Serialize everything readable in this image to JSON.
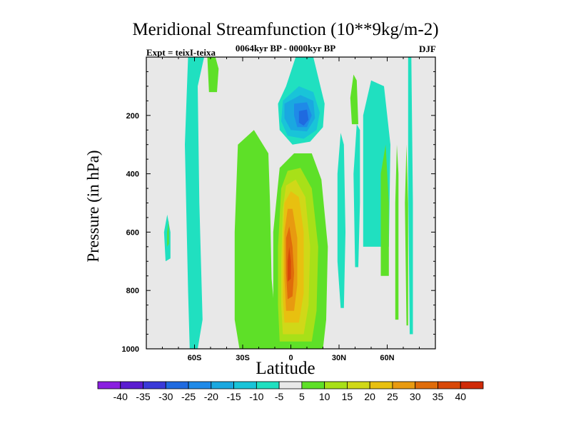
{
  "chart_data": {
    "type": "contour",
    "title": "Meridional Streamfunction (10**9kg/m-2)",
    "subtitle": "0064kyr BP - 0000kyr BP",
    "experiment": "Expt = teixI-teixa",
    "season": "DJF",
    "xlabel": "Latitude",
    "ylabel": "Pressure (in hPa)",
    "xlim": [
      -90,
      90
    ],
    "ylim": [
      1000,
      0
    ],
    "xticks": [
      {
        "value": -60,
        "label": "60S"
      },
      {
        "value": -30,
        "label": "30S"
      },
      {
        "value": 0,
        "label": "0"
      },
      {
        "value": 30,
        "label": "30N"
      },
      {
        "value": 60,
        "label": "60N"
      }
    ],
    "yticks": [
      {
        "value": 200,
        "label": "200"
      },
      {
        "value": 400,
        "label": "400"
      },
      {
        "value": 600,
        "label": "600"
      },
      {
        "value": 800,
        "label": "800"
      },
      {
        "value": 1000,
        "label": "1000"
      }
    ],
    "background_color": "#e8e8e8",
    "colorbar": {
      "levels": [
        "-40",
        "-35",
        "-30",
        "-25",
        "-20",
        "-15",
        "-10",
        "-5",
        "5",
        "10",
        "15",
        "20",
        "25",
        "30",
        "35",
        "40"
      ],
      "colors": [
        "#8a1fe0",
        "#5a1cd0",
        "#3a3ad8",
        "#1f6ae0",
        "#1f8ae8",
        "#1aa8e0",
        "#19c4d8",
        "#20e0c0",
        "#e8e8e8",
        "#5ee028",
        "#a8e018",
        "#d0d818",
        "#e8c010",
        "#e89a10",
        "#e06c0a",
        "#d84808",
        "#d02a08"
      ]
    },
    "fields": [
      {
        "name": "equatorial-positive-cell",
        "level": "5",
        "polygon": [
          [
            -10,
            1000
          ],
          [
            20,
            1000
          ],
          [
            22,
            900
          ],
          [
            23,
            650
          ],
          [
            19,
            420
          ],
          [
            13,
            330
          ],
          [
            2,
            330
          ],
          [
            -7,
            380
          ],
          [
            -11,
            600
          ],
          [
            -11,
            850
          ]
        ]
      },
      {
        "name": "equatorial-positive-cell",
        "level": "10",
        "polygon": [
          [
            -7,
            975
          ],
          [
            13,
            975
          ],
          [
            16,
            870
          ],
          [
            17,
            650
          ],
          [
            13,
            450
          ],
          [
            6,
            380
          ],
          [
            -2,
            390
          ],
          [
            -6,
            450
          ],
          [
            -8,
            650
          ],
          [
            -8,
            850
          ]
        ]
      },
      {
        "name": "equatorial-positive-cell",
        "level": "15",
        "polygon": [
          [
            -5,
            950
          ],
          [
            8,
            950
          ],
          [
            11,
            850
          ],
          [
            12,
            650
          ],
          [
            9,
            480
          ],
          [
            3,
            420
          ],
          [
            -3,
            440
          ],
          [
            -5,
            520
          ],
          [
            -6,
            700
          ],
          [
            -6,
            850
          ]
        ]
      },
      {
        "name": "equatorial-positive-cell",
        "level": "20",
        "polygon": [
          [
            -4,
            910
          ],
          [
            5,
            910
          ],
          [
            8,
            810
          ],
          [
            8,
            600
          ],
          [
            5,
            480
          ],
          [
            0,
            460
          ],
          [
            -4,
            500
          ],
          [
            -5,
            650
          ],
          [
            -5,
            820
          ]
        ]
      },
      {
        "name": "equatorial-positive-cell",
        "level": "25",
        "polygon": [
          [
            -3,
            870
          ],
          [
            2,
            870
          ],
          [
            4,
            780
          ],
          [
            4,
            620
          ],
          [
            1,
            520
          ],
          [
            -2,
            520
          ],
          [
            -4,
            600
          ],
          [
            -4,
            760
          ]
        ]
      },
      {
        "name": "equatorial-positive-cell",
        "level": "30",
        "polygon": [
          [
            -2,
            830
          ],
          [
            1,
            820
          ],
          [
            2,
            740
          ],
          [
            1,
            650
          ],
          [
            -1,
            580
          ],
          [
            -3,
            620
          ],
          [
            -3,
            740
          ]
        ]
      },
      {
        "name": "equatorial-positive-cell",
        "level": "35",
        "polygon": [
          [
            -2,
            770
          ],
          [
            0,
            760
          ],
          [
            0,
            700
          ],
          [
            -1,
            650
          ],
          [
            -2,
            700
          ]
        ]
      },
      {
        "name": "upper-negative-cell",
        "level": "-5",
        "polygon": [
          [
            3,
            0
          ],
          [
            14,
            0
          ],
          [
            21,
            160
          ],
          [
            20,
            240
          ],
          [
            12,
            290
          ],
          [
            1,
            300
          ],
          [
            -7,
            250
          ],
          [
            -8,
            160
          ],
          [
            -3,
            100
          ]
        ]
      },
      {
        "name": "upper-negative-cell",
        "level": "-10",
        "polygon": [
          [
            -5,
            150
          ],
          [
            5,
            100
          ],
          [
            14,
            120
          ],
          [
            18,
            190
          ],
          [
            16,
            250
          ],
          [
            8,
            280
          ],
          [
            -2,
            270
          ],
          [
            -6,
            220
          ]
        ]
      },
      {
        "name": "upper-negative-cell",
        "level": "-15",
        "polygon": [
          [
            -4,
            160
          ],
          [
            6,
            130
          ],
          [
            14,
            150
          ],
          [
            15,
            210
          ],
          [
            10,
            255
          ],
          [
            0,
            250
          ],
          [
            -4,
            210
          ]
        ]
      },
      {
        "name": "upper-negative-cell",
        "level": "-20",
        "polygon": [
          [
            2,
            160
          ],
          [
            10,
            155
          ],
          [
            13,
            200
          ],
          [
            10,
            240
          ],
          [
            4,
            240
          ],
          [
            2,
            200
          ]
        ]
      },
      {
        "name": "upper-negative-cell",
        "level": "-25",
        "polygon": [
          [
            5,
            185
          ],
          [
            10,
            180
          ],
          [
            11,
            215
          ],
          [
            8,
            235
          ],
          [
            5,
            225
          ]
        ]
      },
      {
        "name": "southern-midlatitude-band",
        "level": "5",
        "polygon": [
          [
            -32,
            1000
          ],
          [
            -8,
            1000
          ],
          [
            -12,
            760
          ],
          [
            -13,
            500
          ],
          [
            -14,
            330
          ],
          [
            -23,
            250
          ],
          [
            -33,
            300
          ],
          [
            -35,
            600
          ],
          [
            -35,
            900
          ]
        ]
      },
      {
        "name": "southern-subtropical-band",
        "level": "-5",
        "polygon": [
          [
            -63,
            1000
          ],
          [
            -58,
            1000
          ],
          [
            -55,
            900
          ],
          [
            -57,
            500
          ],
          [
            -58,
            100
          ],
          [
            -54,
            0
          ],
          [
            -64,
            0
          ],
          [
            -66,
            300
          ],
          [
            -64,
            800
          ]
        ]
      },
      {
        "name": "southern-upper-positive",
        "level": "5",
        "polygon": [
          [
            -51,
            120
          ],
          [
            -46,
            120
          ],
          [
            -45,
            40
          ],
          [
            -47,
            0
          ],
          [
            -52,
            0
          ]
        ]
      },
      {
        "name": "far-south-band",
        "level": "-5",
        "polygon": [
          [
            -78,
            700
          ],
          [
            -75,
            690
          ],
          [
            -75,
            600
          ],
          [
            -77,
            540
          ],
          [
            -79,
            600
          ]
        ]
      },
      {
        "name": "far-south-small",
        "level": "5",
        "polygon": [
          [
            -77,
            650
          ],
          [
            -76,
            640
          ],
          [
            -76,
            560
          ],
          [
            -77,
            600
          ]
        ]
      },
      {
        "name": "northern-negative-band",
        "level": "-5",
        "polygon": [
          [
            31,
            860
          ],
          [
            33,
            860
          ],
          [
            34,
            600
          ],
          [
            33,
            300
          ],
          [
            31,
            260
          ],
          [
            29,
            400
          ],
          [
            29,
            700
          ]
        ]
      },
      {
        "name": "northern-negative-band",
        "level": "-5",
        "polygon": [
          [
            40,
            720
          ],
          [
            42,
            720
          ],
          [
            43,
            500
          ],
          [
            43,
            250
          ],
          [
            41,
            230
          ],
          [
            39,
            400
          ]
        ]
      },
      {
        "name": "northern-negative-band",
        "level": "-5",
        "polygon": [
          [
            45,
            650
          ],
          [
            61,
            650
          ],
          [
            62,
            300
          ],
          [
            58,
            100
          ],
          [
            50,
            80
          ],
          [
            45,
            200
          ]
        ]
      },
      {
        "name": "northern-positive-band",
        "level": "5",
        "polygon": [
          [
            56,
            750
          ],
          [
            61,
            750
          ],
          [
            61,
            500
          ],
          [
            59,
            300
          ],
          [
            56,
            400
          ]
        ]
      },
      {
        "name": "northern-positive-band",
        "level": "5",
        "polygon": [
          [
            38,
            230
          ],
          [
            42,
            230
          ],
          [
            41,
            80
          ],
          [
            39,
            60
          ],
          [
            37,
            140
          ]
        ]
      },
      {
        "name": "northern-positive-band",
        "level": "5",
        "polygon": [
          [
            65,
            900
          ],
          [
            67,
            900
          ],
          [
            67,
            400
          ],
          [
            66,
            300
          ],
          [
            65,
            500
          ]
        ]
      },
      {
        "name": "northern-negative-thin",
        "level": "-5",
        "polygon": [
          [
            74,
            950
          ],
          [
            76,
            950
          ],
          [
            76,
            500
          ],
          [
            75,
            0
          ],
          [
            73,
            0
          ],
          [
            73,
            400
          ]
        ]
      },
      {
        "name": "northern-positive-thin",
        "level": "5",
        "polygon": [
          [
            72,
            920
          ],
          [
            73,
            920
          ],
          [
            73,
            500
          ],
          [
            72,
            300
          ],
          [
            71,
            500
          ]
        ]
      }
    ]
  }
}
